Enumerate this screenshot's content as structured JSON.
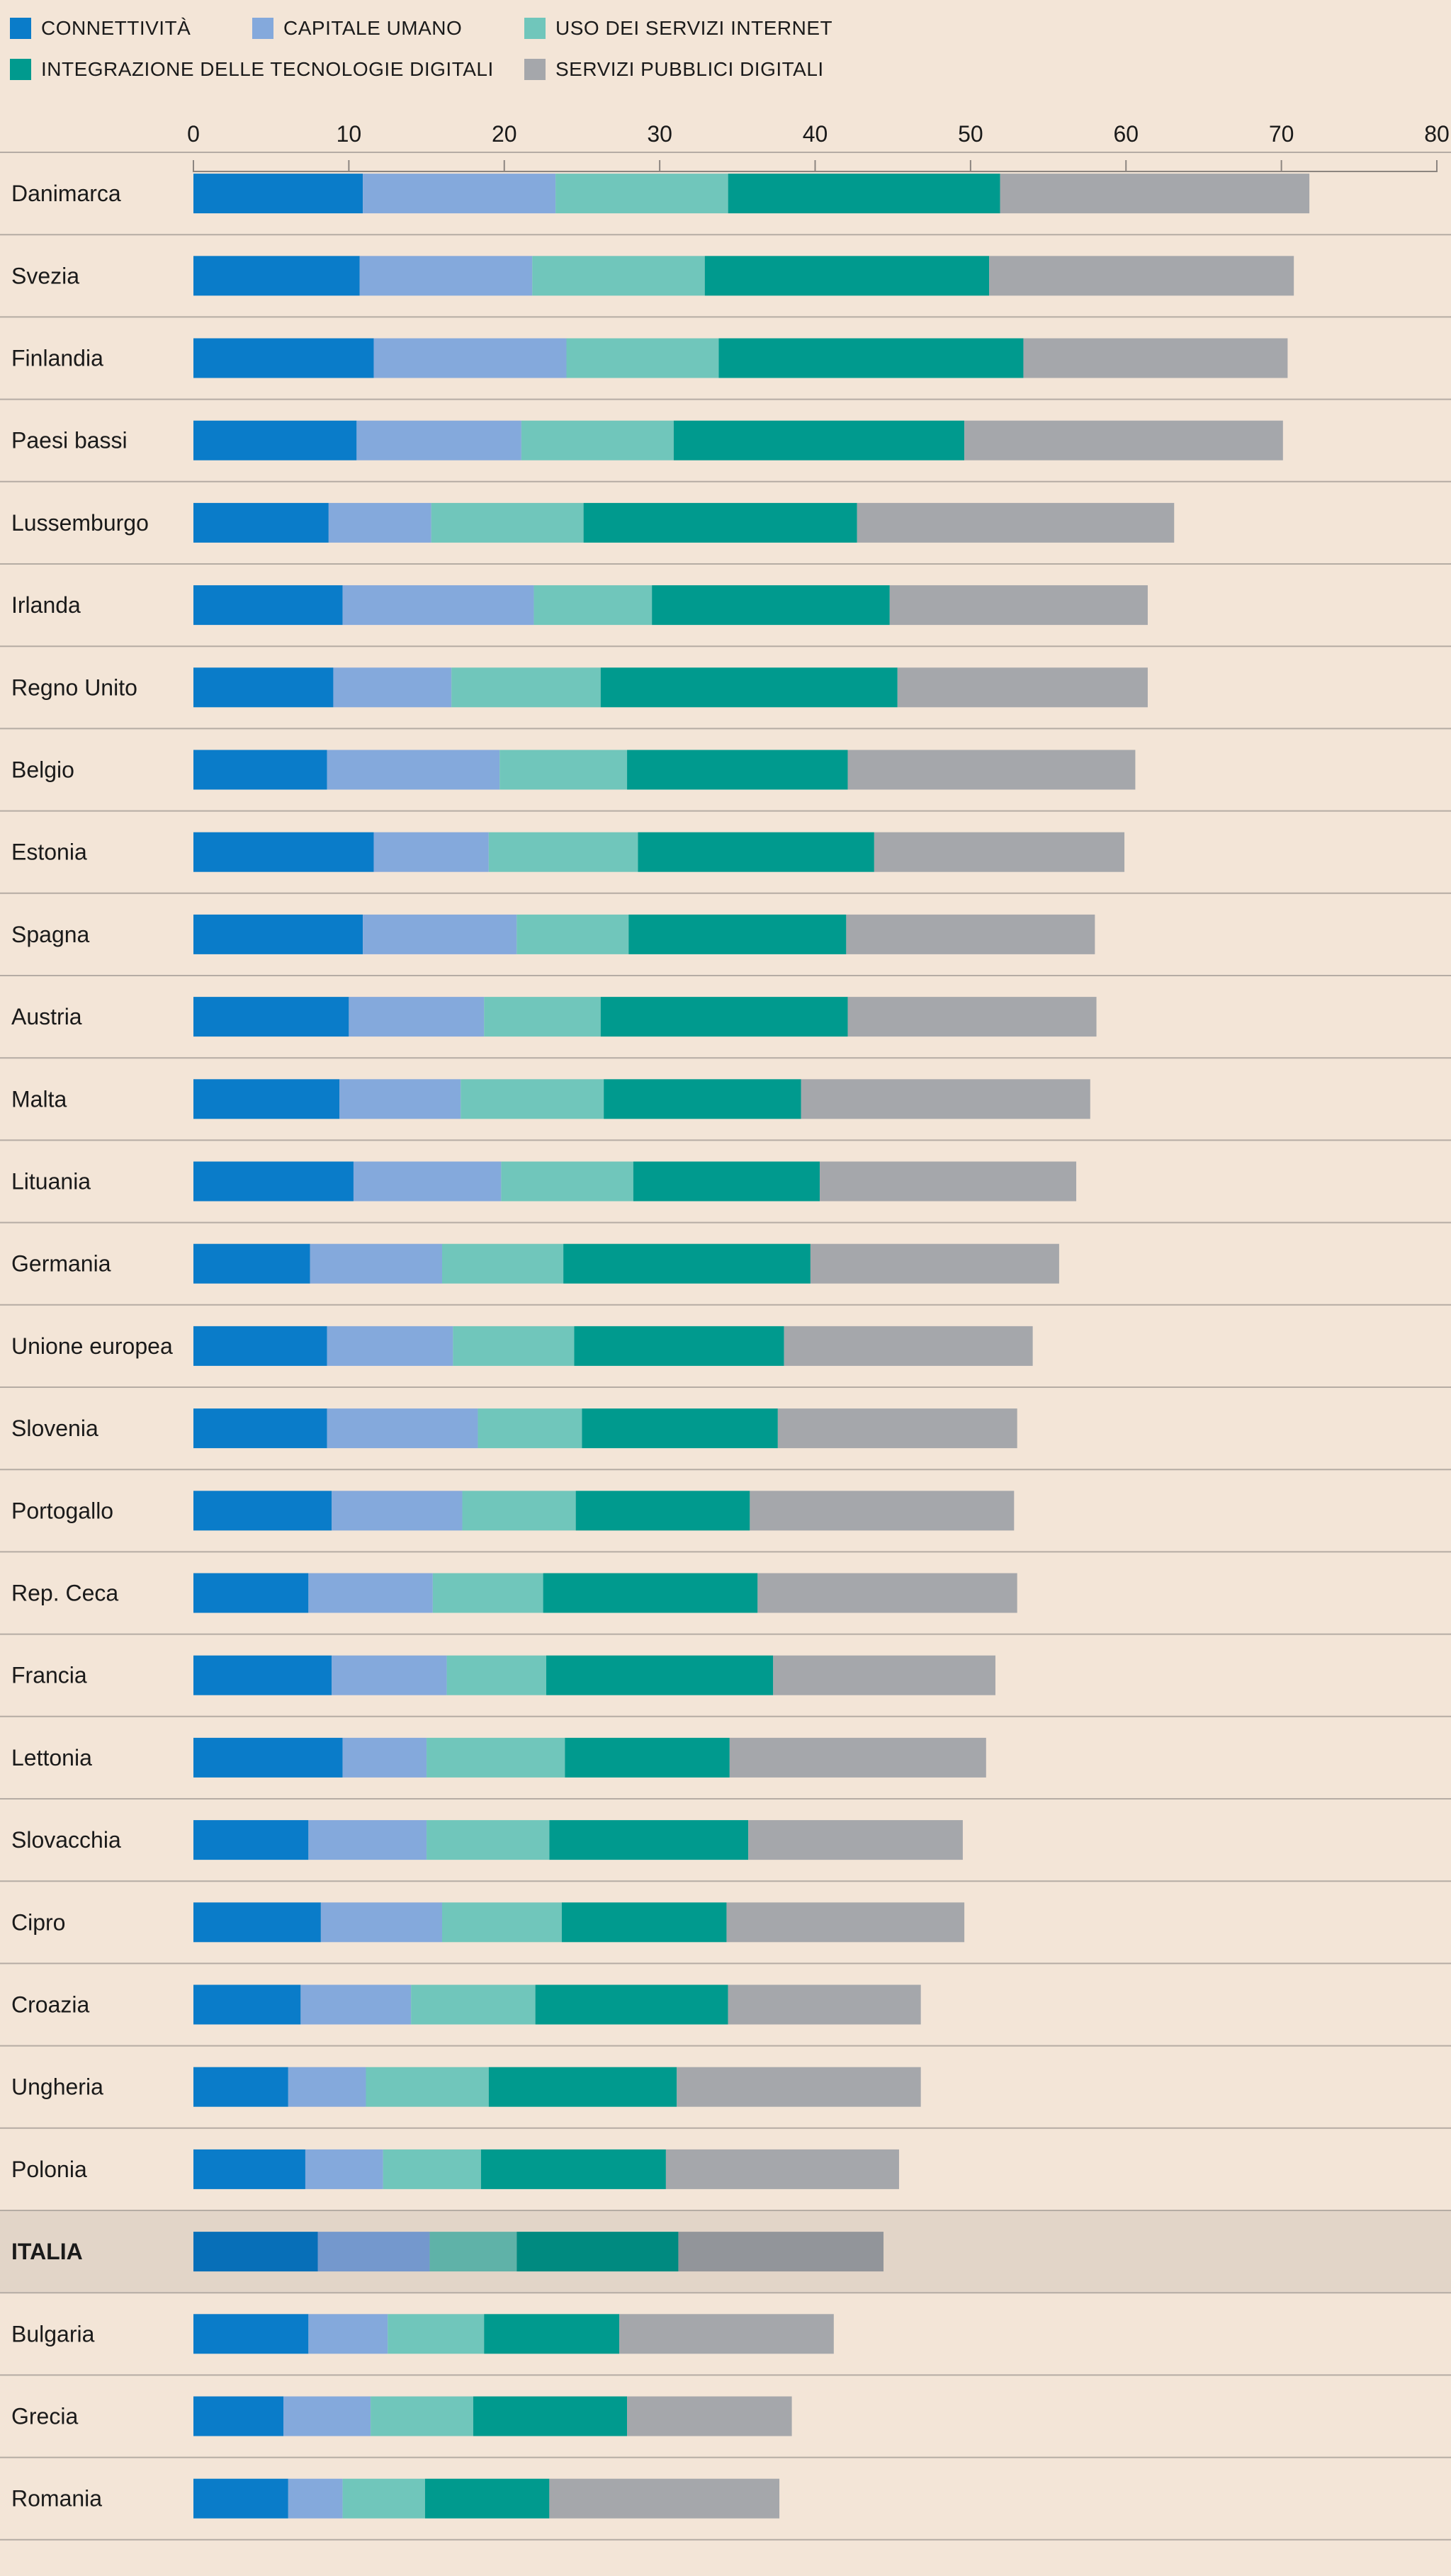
{
  "legend": [
    {
      "label": "CONNETTIVITÀ",
      "color": "#0a7cc9"
    },
    {
      "label": "CAPITALE UMANO",
      "color": "#84a9dc"
    },
    {
      "label": "USO DEI SERVIZI INTERNET",
      "color": "#70c6bb"
    },
    {
      "label": "INTEGRAZIONE DELLE TECNOLOGIE DIGITALI",
      "color": "#009a8e"
    },
    {
      "label": "SERVIZI PUBBLICI DIGITALI",
      "color": "#a5a7ab"
    }
  ],
  "chart_data": {
    "type": "bar",
    "orientation": "horizontal",
    "stacked": true,
    "xlim": [
      0,
      80
    ],
    "xticks": [
      0,
      10,
      20,
      30,
      40,
      50,
      60,
      70,
      80
    ],
    "highlight": "ITALIA",
    "highlight_colors": [
      "#076fb8",
      "#7498cd",
      "#5fb2a8",
      "#008a80",
      "#92959a"
    ],
    "highlight_background": "#e2d5c8",
    "categories": [
      "Danimarca",
      "Svezia",
      "Finlandia",
      "Paesi bassi",
      "Lussemburgo",
      "Irlanda",
      "Regno Unito",
      "Belgio",
      "Estonia",
      "Spagna",
      "Austria",
      "Malta",
      "Lituania",
      "Germania",
      "Unione europea",
      "Slovenia",
      "Portogallo",
      "Rep. Ceca",
      "Francia",
      "Lettonia",
      "Slovacchia",
      "Cipro",
      "Croazia",
      "Ungheria",
      "Polonia",
      "ITALIA",
      "Bulgaria",
      "Grecia",
      "Romania"
    ],
    "series": [
      {
        "name": "CONNETTIVITÀ",
        "color": "#0a7cc9",
        "values": [
          10.9,
          10.7,
          11.6,
          10.5,
          8.7,
          9.6,
          9.0,
          8.6,
          11.6,
          10.9,
          10.0,
          9.4,
          10.3,
          7.5,
          8.6,
          8.6,
          8.9,
          7.4,
          8.9,
          9.6,
          7.4,
          8.2,
          6.9,
          6.1,
          7.2,
          8.0,
          7.4,
          5.8,
          6.1
        ]
      },
      {
        "name": "CAPITALE UMANO",
        "color": "#84a9dc",
        "values": [
          12.4,
          11.1,
          12.4,
          10.6,
          6.6,
          12.3,
          7.6,
          11.1,
          7.4,
          9.9,
          8.7,
          7.8,
          9.5,
          8.5,
          8.1,
          9.7,
          8.4,
          8.0,
          7.4,
          5.4,
          7.6,
          7.8,
          7.1,
          5.0,
          5.0,
          7.2,
          5.1,
          5.6,
          3.5
        ]
      },
      {
        "name": "USO DEI SERVIZI INTERNET",
        "color": "#70c6bb",
        "values": [
          11.1,
          11.1,
          9.8,
          9.8,
          9.8,
          7.6,
          9.6,
          8.2,
          9.6,
          7.2,
          7.5,
          9.2,
          8.5,
          7.8,
          7.8,
          6.7,
          7.3,
          7.1,
          6.4,
          8.9,
          7.9,
          7.7,
          8.0,
          7.9,
          6.3,
          5.6,
          6.2,
          6.6,
          5.3
        ]
      },
      {
        "name": "INTEGRAZIONE DELLE TECNOLOGIE DIGITALI",
        "color": "#009a8e",
        "values": [
          17.5,
          18.3,
          19.6,
          18.7,
          17.6,
          15.3,
          19.1,
          14.2,
          15.2,
          14.0,
          15.9,
          12.7,
          12.0,
          15.9,
          13.5,
          12.6,
          11.2,
          13.8,
          14.6,
          10.6,
          12.8,
          10.6,
          12.4,
          12.1,
          11.9,
          10.4,
          8.7,
          9.9,
          8.0
        ]
      },
      {
        "name": "SERVIZI PUBBLICI DIGITALI",
        "color": "#a5a7ab",
        "values": [
          19.9,
          19.6,
          17.0,
          20.5,
          20.4,
          16.6,
          16.1,
          18.5,
          16.1,
          16.0,
          16.0,
          18.6,
          16.5,
          16.0,
          16.0,
          15.4,
          17.0,
          16.7,
          14.3,
          16.5,
          13.8,
          15.3,
          12.4,
          15.7,
          15.0,
          13.2,
          13.8,
          10.6,
          14.8
        ]
      }
    ]
  }
}
